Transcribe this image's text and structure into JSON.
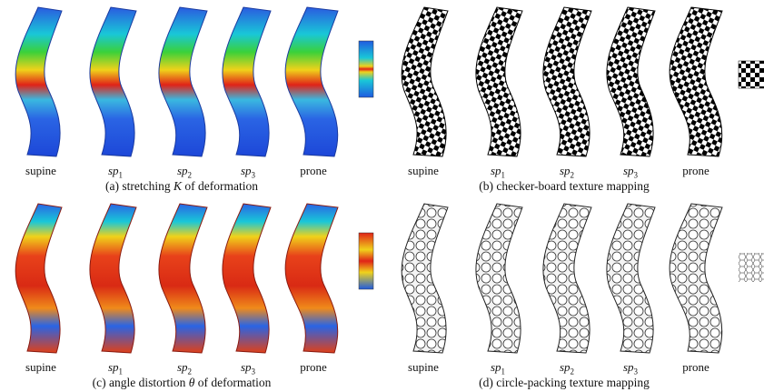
{
  "figure": {
    "column_labels": [
      "supine",
      "sp1",
      "sp2",
      "sp3",
      "prone"
    ],
    "panels": [
      {
        "id": "a",
        "caption_prefix": "(a) stretching ",
        "caption_symbol": "K",
        "caption_suffix": " of deformation",
        "style": "stretching",
        "legend": "colorbar"
      },
      {
        "id": "b",
        "caption_prefix": "(b) checker-board texture mapping",
        "caption_symbol": "",
        "caption_suffix": "",
        "style": "checker",
        "legend": "checker"
      },
      {
        "id": "c",
        "caption_prefix": "(c) angle distortion ",
        "caption_symbol": "θ",
        "caption_suffix": " of deformation",
        "style": "angle",
        "legend": "colorbar"
      },
      {
        "id": "d",
        "caption_prefix": "(d) circle-packing texture mapping",
        "caption_symbol": "",
        "caption_suffix": "",
        "style": "circle",
        "legend": "hexagon"
      }
    ]
  }
}
